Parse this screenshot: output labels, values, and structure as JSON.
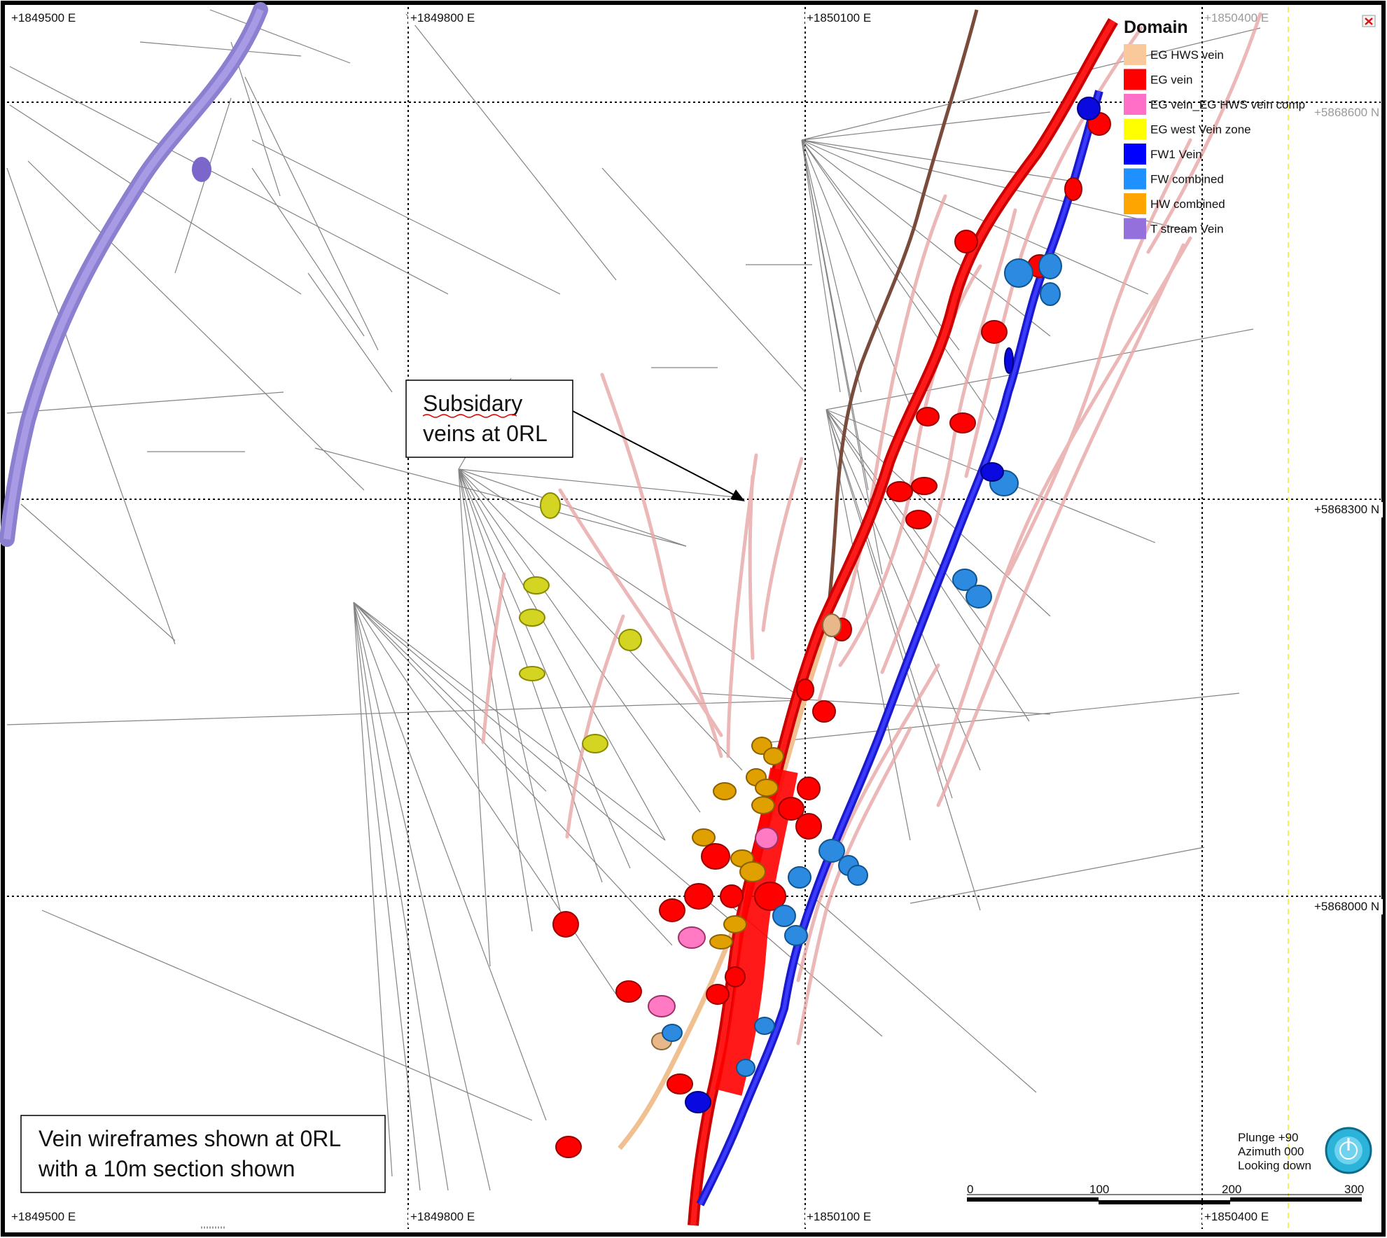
{
  "map": {
    "easting_labels": [
      "+1849500 E",
      "+1849800 E",
      "+1850100 E",
      "+1850400 E"
    ],
    "northing_labels": [
      "+5868600 N",
      "+5868300 N",
      "+5868000 N"
    ]
  },
  "legend": {
    "title": "Domain",
    "items": [
      {
        "label": "EG HWS vein",
        "color": "#f9c89b"
      },
      {
        "label": "EG vein",
        "color": "#ff0000"
      },
      {
        "label": "EG vein_EG HWS vein comp",
        "color": "#ff6ec7"
      },
      {
        "label": "EG west Vein zone",
        "color": "#ffff00"
      },
      {
        "label": "FW1 Vein",
        "color": "#0000ff"
      },
      {
        "label": "FW combined",
        "color": "#1e90ff"
      },
      {
        "label": "HW combined",
        "color": "#ffa500"
      },
      {
        "label": "T stream Vein",
        "color": "#9370db"
      }
    ]
  },
  "callouts": {
    "subsidiary_line1": "Subsidary",
    "subsidiary_line2": "veins at 0RL",
    "note_line1": "Vein wireframes shown at 0RL",
    "note_line2": "with a 10m section shown"
  },
  "orientation": {
    "plunge": "Plunge +90",
    "azimuth": "Azimuth 000",
    "looking": "Looking down"
  },
  "scale_bar": {
    "labels": [
      "0",
      "100",
      "200",
      "300"
    ]
  },
  "colors": {
    "drillhole": "#6e6e6e",
    "subsidiary_vein": "#e8a6a6",
    "brown_vein": "#7a4a3a"
  }
}
